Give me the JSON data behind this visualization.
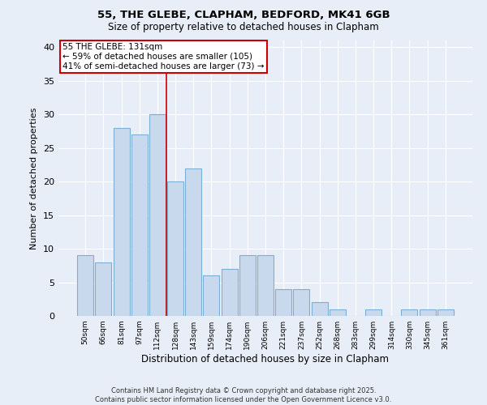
{
  "title1": "55, THE GLEBE, CLAPHAM, BEDFORD, MK41 6GB",
  "title2": "Size of property relative to detached houses in Clapham",
  "xlabel": "Distribution of detached houses by size in Clapham",
  "ylabel": "Number of detached properties",
  "categories": [
    "50sqm",
    "66sqm",
    "81sqm",
    "97sqm",
    "112sqm",
    "128sqm",
    "143sqm",
    "159sqm",
    "174sqm",
    "190sqm",
    "206sqm",
    "221sqm",
    "237sqm",
    "252sqm",
    "268sqm",
    "283sqm",
    "299sqm",
    "314sqm",
    "330sqm",
    "345sqm",
    "361sqm"
  ],
  "values": [
    9,
    8,
    28,
    27,
    30,
    20,
    22,
    6,
    7,
    9,
    9,
    4,
    4,
    2,
    1,
    0,
    1,
    0,
    1,
    1,
    1
  ],
  "bar_color": "#c8d9ee",
  "bar_edge_color": "#7bafd4",
  "vline_color": "#cc0000",
  "vline_index": 4.5,
  "annotation_text": "55 THE GLEBE: 131sqm\n← 59% of detached houses are smaller (105)\n41% of semi-detached houses are larger (73) →",
  "annotation_box_color": "white",
  "annotation_box_edge": "#cc0000",
  "ylim": [
    0,
    41
  ],
  "yticks": [
    0,
    5,
    10,
    15,
    20,
    25,
    30,
    35,
    40
  ],
  "background_color": "#e8eef8",
  "grid_color": "white",
  "footer1": "Contains HM Land Registry data © Crown copyright and database right 2025.",
  "footer2": "Contains public sector information licensed under the Open Government Licence v3.0."
}
